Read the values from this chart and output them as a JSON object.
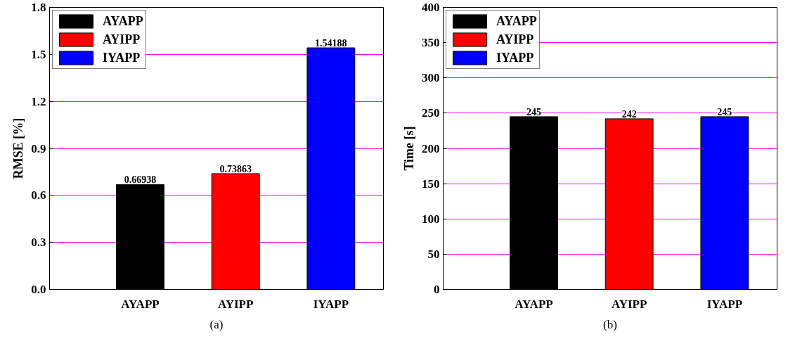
{
  "chart_data": [
    {
      "type": "bar",
      "ylabel": "RMSE [%]",
      "categories": [
        "AYAPP",
        "AYIPP",
        "IYAPP"
      ],
      "series": [
        {
          "name": "AYAPP",
          "color": "#000000",
          "values": [
            0.66938,
            null,
            null
          ]
        },
        {
          "name": "AYIPP",
          "color": "#ff0000",
          "values": [
            null,
            0.73863,
            null
          ]
        },
        {
          "name": "IYAPP",
          "color": "#0000ff",
          "values": [
            null,
            null,
            1.54188
          ]
        }
      ],
      "ylim": [
        0,
        1.8
      ],
      "yticks": [
        {
          "value": 0,
          "label": "0.0"
        },
        0.3,
        0.6,
        0.9,
        1.2,
        1.5,
        1.8
      ],
      "grid": "y",
      "legend": "top left",
      "data_labels": true,
      "annotations": [
        "(a)"
      ]
    },
    {
      "type": "bar",
      "ylabel": "Time [s]",
      "categories": [
        "AYAPP",
        "AYIPP",
        "IYAPP"
      ],
      "series": [
        {
          "name": "AYAPP",
          "color": "#000000",
          "values": [
            245,
            null,
            null
          ]
        },
        {
          "name": "AYIPP",
          "color": "#ff0000",
          "values": [
            null,
            242,
            null
          ]
        },
        {
          "name": "IYAPP",
          "color": "#0000ff",
          "values": [
            null,
            null,
            245
          ]
        }
      ],
      "ylim": [
        0,
        400
      ],
      "yticks": [
        0,
        50,
        100,
        150,
        200,
        250,
        300,
        350,
        400
      ],
      "grid": "y",
      "legend": "top left",
      "data_labels": true,
      "annotations": [
        "(b)"
      ]
    }
  ]
}
